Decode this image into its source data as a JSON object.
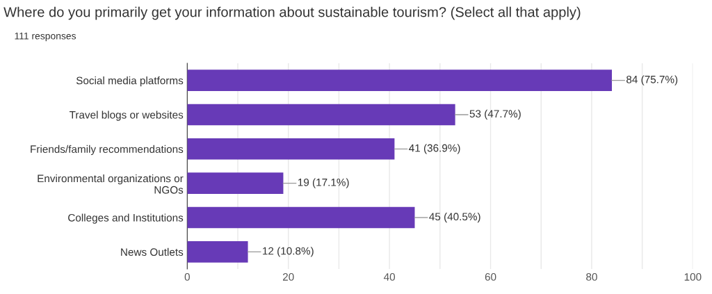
{
  "chart_data": {
    "type": "bar",
    "orientation": "horizontal",
    "title": "Where do you primarily get your information about sustainable tourism? (Select all that apply)",
    "subtitle": "111 responses",
    "categories": [
      "Social media platforms",
      "Travel blogs or websites",
      "Friends/family recommendations",
      "Environmental organizations or\nNGOs",
      "Colleges and Institutions",
      "News Outlets"
    ],
    "values": [
      84,
      53,
      41,
      19,
      45,
      12
    ],
    "value_labels": [
      "84 (75.7%)",
      "53 (47.7%)",
      "41 (36.9%)",
      "19 (17.1%)",
      "45 (40.5%)",
      "12 (10.8%)"
    ],
    "color": "#673ab7",
    "xlim": [
      0,
      100
    ],
    "xticks": [
      0,
      {
        "value": 10,
        "label": null
      },
      20,
      {
        "value": 30,
        "label": null
      },
      40,
      {
        "value": 50,
        "label": null
      },
      60,
      {
        "value": 70,
        "label": null
      },
      80,
      {
        "value": 90,
        "label": null
      },
      100
    ],
    "grid": "x",
    "legend": false
  }
}
